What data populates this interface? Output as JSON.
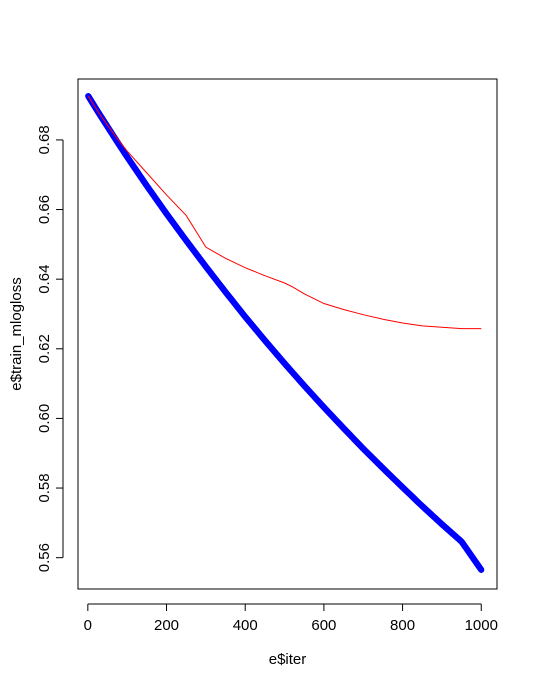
{
  "chart_data": {
    "type": "scatter",
    "title": "",
    "xlabel": "e$iter",
    "ylabel": "e$train_mlogloss",
    "xlim": [
      -25,
      1040
    ],
    "ylim": [
      0.551,
      0.6975
    ],
    "x_ticks": [
      0,
      200,
      400,
      600,
      800,
      1000
    ],
    "x_tick_labels": [
      "0",
      "200",
      "400",
      "600",
      "800",
      "1000"
    ],
    "y_ticks": [
      0.56,
      0.58,
      0.6,
      0.62,
      0.64,
      0.66,
      0.68
    ],
    "y_tick_labels": [
      "0.56",
      "0.58",
      "0.60",
      "0.62",
      "0.64",
      "0.66",
      "0.68"
    ],
    "grid": false,
    "legend": "none",
    "series": [
      {
        "style": "points",
        "marker": "open-circle",
        "color": "#0000ff",
        "x": [
          1,
          25,
          50,
          75,
          100,
          150,
          200,
          250,
          300,
          350,
          400,
          450,
          500,
          550,
          600,
          650,
          700,
          750,
          800,
          850,
          900,
          950,
          1000
        ],
        "y": [
          0.6926,
          0.6882,
          0.6838,
          0.6794,
          0.6751,
          0.6668,
          0.6588,
          0.6511,
          0.6436,
          0.6363,
          0.6292,
          0.6224,
          0.6158,
          0.6094,
          0.6032,
          0.5972,
          0.5913,
          0.5857,
          0.5802,
          0.5748,
          0.5696,
          0.5646,
          0.5565
        ]
      },
      {
        "style": "line",
        "color": "#ff0000",
        "x": [
          1,
          25,
          50,
          75,
          100,
          150,
          200,
          250,
          300,
          350,
          400,
          450,
          500,
          520,
          550,
          600,
          650,
          700,
          750,
          800,
          850,
          900,
          950,
          1000
        ],
        "y": [
          0.6926,
          0.6883,
          0.6842,
          0.6804,
          0.6768,
          0.6705,
          0.6642,
          0.6583,
          0.6492,
          0.646,
          0.6433,
          0.641,
          0.6389,
          0.6378,
          0.6358,
          0.633,
          0.6313,
          0.6298,
          0.6285,
          0.6274,
          0.6266,
          0.6262,
          0.6258,
          0.6258
        ]
      }
    ]
  }
}
